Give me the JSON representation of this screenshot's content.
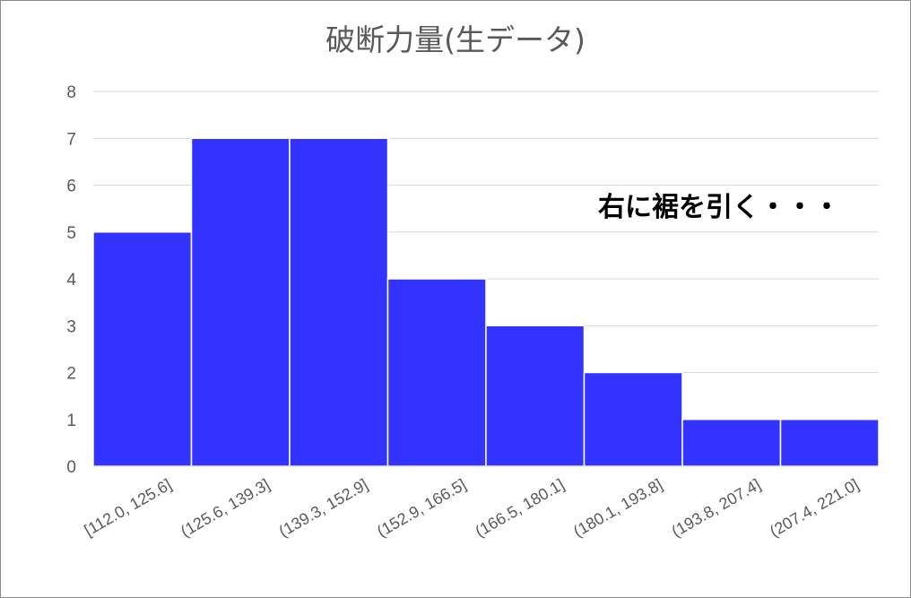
{
  "chart_data": {
    "type": "bar",
    "title": "破断力量(生データ)",
    "annotation": "右に裾を引く・・・",
    "categories": [
      "[112.0, 125.6]",
      "(125.6, 139.3]",
      "(139.3, 152.9]",
      "(152.9, 166.5]",
      "(166.5, 180.1]",
      "(180.1, 193.8]",
      "(193.8, 207.4]",
      "(207.4, 221.0]"
    ],
    "values": [
      5,
      7,
      7,
      4,
      3,
      2,
      1,
      1
    ],
    "xlabel": "",
    "ylabel": "",
    "ylim": [
      0,
      8
    ],
    "yticks": [
      0,
      1,
      2,
      3,
      4,
      5,
      6,
      7,
      8
    ],
    "grid": true,
    "bar_color": "#3333ff",
    "grid_color": "#d9d9d9"
  }
}
